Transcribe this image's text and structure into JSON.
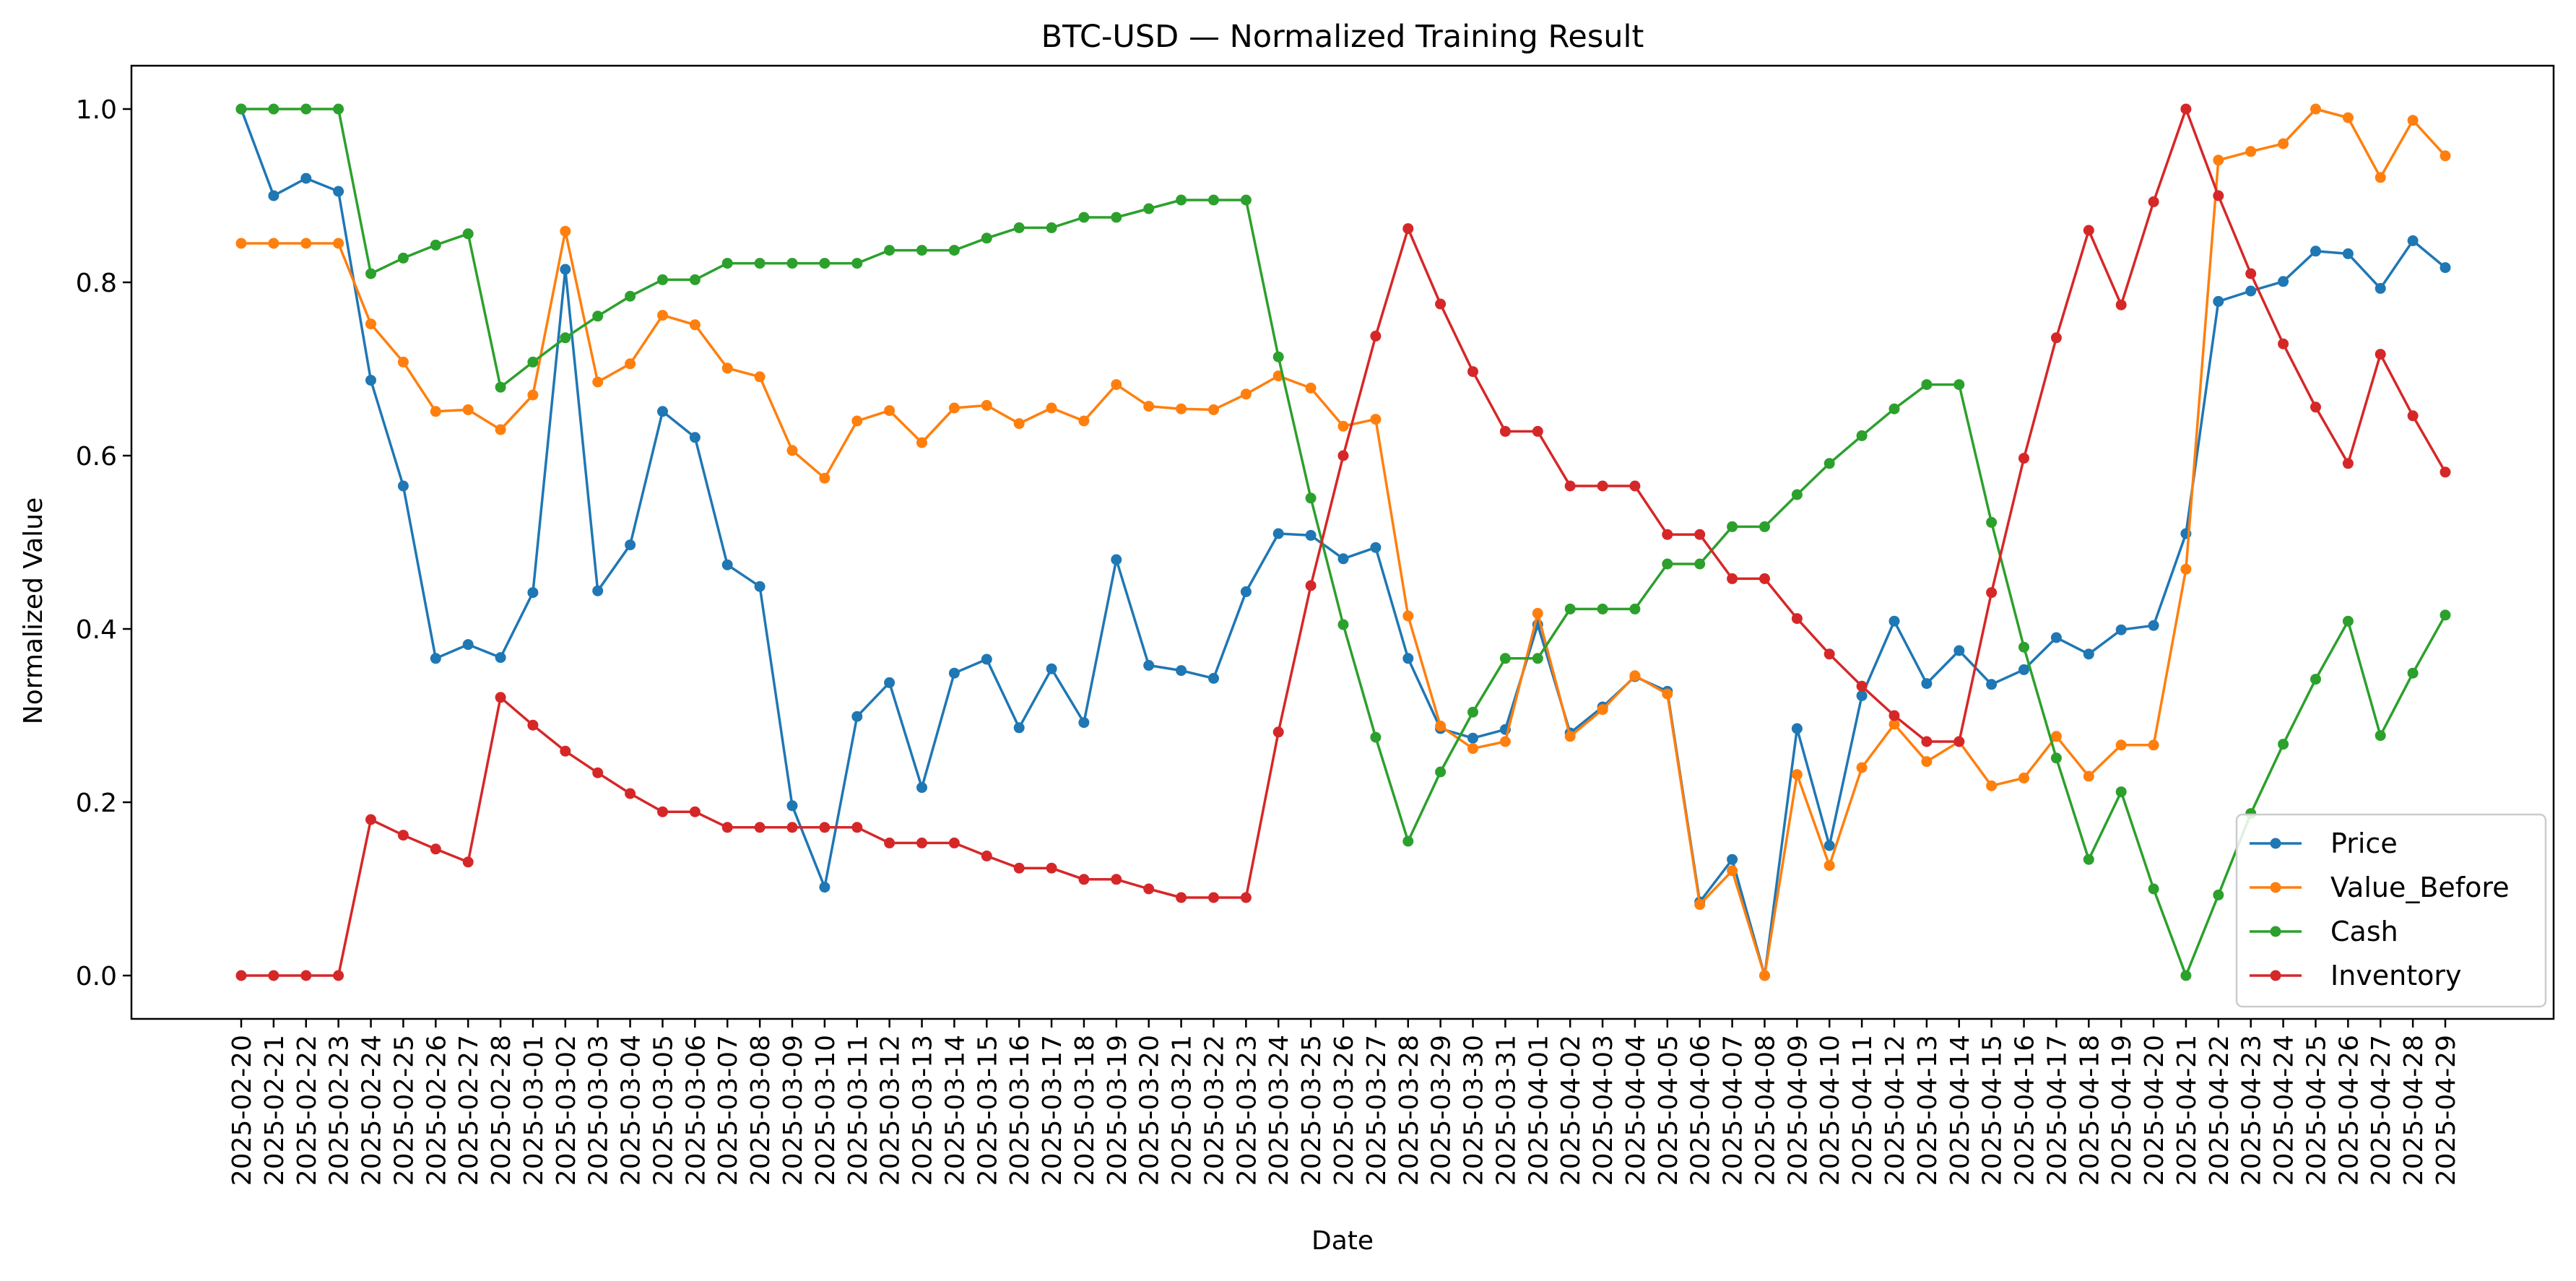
{
  "chart_data": {
    "type": "line",
    "title": "BTC-USD — Normalized Training Result",
    "xlabel": "Date",
    "ylabel": "Normalized Value",
    "ylim": [
      -0.05,
      1.05
    ],
    "yticks": [
      "0.0",
      "0.2",
      "0.4",
      "0.6",
      "0.8",
      "1.0"
    ],
    "grid": false,
    "legend_position": "lower-right",
    "x": [
      "2025-02-20",
      "2025-02-21",
      "2025-02-22",
      "2025-02-23",
      "2025-02-24",
      "2025-02-25",
      "2025-02-26",
      "2025-02-27",
      "2025-02-28",
      "2025-03-01",
      "2025-03-02",
      "2025-03-03",
      "2025-03-04",
      "2025-03-05",
      "2025-03-06",
      "2025-03-07",
      "2025-03-08",
      "2025-03-09",
      "2025-03-10",
      "2025-03-11",
      "2025-03-12",
      "2025-03-13",
      "2025-03-14",
      "2025-03-15",
      "2025-03-16",
      "2025-03-17",
      "2025-03-18",
      "2025-03-19",
      "2025-03-20",
      "2025-03-21",
      "2025-03-22",
      "2025-03-23",
      "2025-03-24",
      "2025-03-25",
      "2025-03-26",
      "2025-03-27",
      "2025-03-28",
      "2025-03-29",
      "2025-03-30",
      "2025-03-31",
      "2025-04-01",
      "2025-04-02",
      "2025-04-03",
      "2025-04-04",
      "2025-04-05",
      "2025-04-06",
      "2025-04-07",
      "2025-04-08",
      "2025-04-09",
      "2025-04-10",
      "2025-04-11",
      "2025-04-12",
      "2025-04-13",
      "2025-04-14",
      "2025-04-15",
      "2025-04-16",
      "2025-04-17",
      "2025-04-18",
      "2025-04-19",
      "2025-04-20",
      "2025-04-21",
      "2025-04-22",
      "2025-04-23",
      "2025-04-24",
      "2025-04-25",
      "2025-04-26",
      "2025-04-27",
      "2025-04-28",
      "2025-04-29"
    ],
    "series": [
      {
        "name": "Price",
        "color": "#1f77b4",
        "values": [
          1.0,
          0.9,
          0.92,
          0.905,
          0.687,
          0.565,
          0.366,
          0.382,
          0.367,
          0.442,
          0.815,
          0.444,
          0.497,
          0.651,
          0.621,
          0.474,
          0.449,
          0.196,
          0.102,
          0.299,
          0.338,
          0.217,
          0.349,
          0.365,
          0.286,
          0.354,
          0.292,
          0.48,
          0.358,
          0.352,
          0.343,
          0.443,
          0.51,
          0.508,
          0.481,
          0.494,
          0.366,
          0.285,
          0.274,
          0.284,
          0.405,
          0.28,
          0.31,
          0.345,
          0.328,
          0.085,
          0.134,
          0.0,
          0.285,
          0.15,
          0.323,
          0.409,
          0.337,
          0.375,
          0.336,
          0.353,
          0.39,
          0.371,
          0.399,
          0.404,
          0.51,
          0.778,
          0.79,
          0.801,
          0.836,
          0.833,
          0.793,
          0.848,
          0.817
        ]
      },
      {
        "name": "Value_Before",
        "color": "#ff7f0e",
        "values": [
          0.845,
          0.845,
          0.845,
          0.845,
          0.752,
          0.708,
          0.651,
          0.653,
          0.63,
          0.67,
          0.859,
          0.685,
          0.706,
          0.762,
          0.751,
          0.701,
          0.691,
          0.606,
          0.574,
          0.64,
          0.652,
          0.615,
          0.655,
          0.658,
          0.637,
          0.655,
          0.64,
          0.682,
          0.657,
          0.654,
          0.653,
          0.671,
          0.692,
          0.678,
          0.634,
          0.642,
          0.415,
          0.288,
          0.262,
          0.27,
          0.418,
          0.276,
          0.307,
          0.346,
          0.325,
          0.082,
          0.121,
          0.0,
          0.232,
          0.127,
          0.24,
          0.29,
          0.247,
          0.27,
          0.219,
          0.228,
          0.276,
          0.23,
          0.266,
          0.266,
          0.469,
          0.941,
          0.951,
          0.96,
          1.0,
          0.99,
          0.921,
          0.987,
          0.946
        ]
      },
      {
        "name": "Cash",
        "color": "#2ca02c",
        "values": [
          1.0,
          1.0,
          1.0,
          1.0,
          0.81,
          0.828,
          0.843,
          0.856,
          0.679,
          0.708,
          0.736,
          0.761,
          0.784,
          0.803,
          0.803,
          0.822,
          0.822,
          0.822,
          0.822,
          0.822,
          0.837,
          0.837,
          0.837,
          0.851,
          0.863,
          0.863,
          0.875,
          0.875,
          0.885,
          0.895,
          0.895,
          0.895,
          0.714,
          0.551,
          0.405,
          0.275,
          0.155,
          0.235,
          0.304,
          0.366,
          0.366,
          0.423,
          0.423,
          0.423,
          0.475,
          0.475,
          0.518,
          0.518,
          0.555,
          0.591,
          0.623,
          0.654,
          0.682,
          0.682,
          0.523,
          0.379,
          0.251,
          0.134,
          0.212,
          0.1,
          0.0,
          0.093,
          0.187,
          0.267,
          0.342,
          0.409,
          0.277,
          0.349,
          0.416
        ]
      },
      {
        "name": "Inventory",
        "color": "#d62728",
        "values": [
          0.0,
          0.0,
          0.0,
          0.0,
          0.18,
          0.162,
          0.146,
          0.131,
          0.321,
          0.289,
          0.259,
          0.234,
          0.21,
          0.189,
          0.189,
          0.171,
          0.171,
          0.171,
          0.171,
          0.171,
          0.153,
          0.153,
          0.153,
          0.138,
          0.124,
          0.124,
          0.111,
          0.111,
          0.1,
          0.09,
          0.09,
          0.09,
          0.281,
          0.45,
          0.6,
          0.738,
          0.862,
          0.775,
          0.697,
          0.628,
          0.628,
          0.565,
          0.565,
          0.565,
          0.509,
          0.509,
          0.458,
          0.458,
          0.412,
          0.371,
          0.334,
          0.3,
          0.27,
          0.27,
          0.442,
          0.597,
          0.736,
          0.86,
          0.774,
          0.893,
          1.0,
          0.9,
          0.81,
          0.729,
          0.656,
          0.591,
          0.717,
          0.646,
          0.581
        ]
      }
    ]
  }
}
